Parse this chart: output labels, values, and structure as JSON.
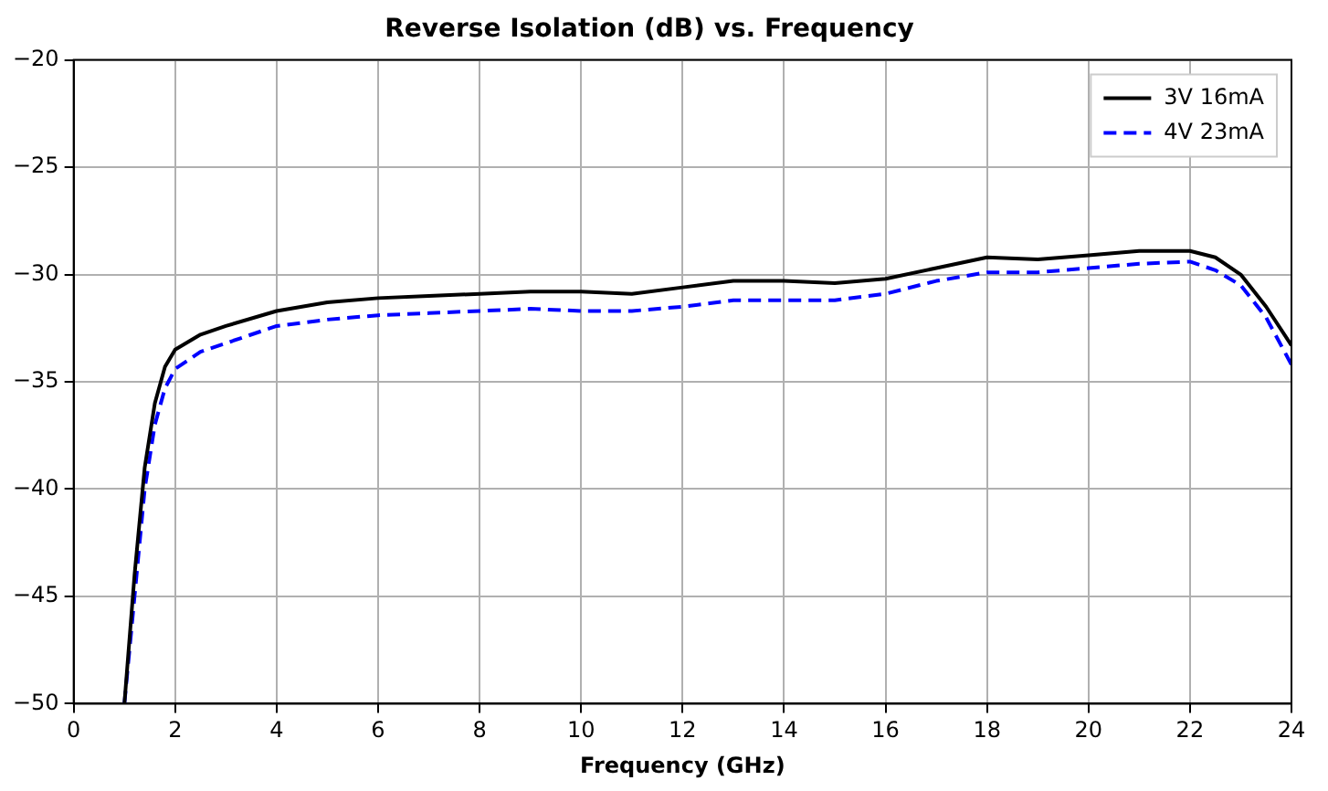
{
  "chart_data": {
    "type": "line",
    "title": "Reverse Isolation (dB) vs. Frequency",
    "xlabel": "Frequency (GHz)",
    "xlim": [
      0,
      24
    ],
    "xticks": [
      0,
      2,
      4,
      6,
      8,
      10,
      12,
      14,
      16,
      18,
      20,
      22,
      24
    ],
    "ylim": [
      -50,
      -20
    ],
    "yticks": [
      -50,
      -45,
      -40,
      -35,
      -30,
      -25,
      -20
    ],
    "grid": true,
    "legend": "top right",
    "marker": "none",
    "series": [
      {
        "name": "3V 16mA",
        "color": "#000000",
        "line_style": "solid",
        "x": [
          1.0,
          1.2,
          1.4,
          1.6,
          1.8,
          2,
          2.5,
          3,
          4,
          5,
          6,
          7,
          8,
          9,
          10,
          11,
          12,
          13,
          14,
          15,
          16,
          17,
          18,
          19,
          20,
          21,
          22,
          22.5,
          23,
          23.5,
          24
        ],
        "values": [
          -50,
          -44,
          -39,
          -36,
          -34.3,
          -33.5,
          -32.8,
          -32.4,
          -31.7,
          -31.3,
          -31.1,
          -31,
          -30.9,
          -30.8,
          -30.8,
          -30.9,
          -30.6,
          -30.3,
          -30.3,
          -30.4,
          -30.2,
          -29.7,
          -29.2,
          -29.3,
          -29.1,
          -28.9,
          -28.9,
          -29.2,
          -30,
          -31.5,
          -33.3
        ]
      },
      {
        "name": "4V 23mA",
        "color": "#0000ff",
        "line_style": "dashed",
        "x": [
          1.0,
          1.2,
          1.4,
          1.6,
          1.8,
          2,
          2.5,
          3,
          4,
          5,
          6,
          7,
          8,
          9,
          10,
          11,
          12,
          13,
          14,
          15,
          16,
          17,
          18,
          19,
          20,
          21,
          22,
          22.5,
          23,
          23.5,
          24
        ],
        "values": [
          -50,
          -45,
          -40,
          -37,
          -35.3,
          -34.4,
          -33.6,
          -33.2,
          -32.4,
          -32.1,
          -31.9,
          -31.8,
          -31.7,
          -31.6,
          -31.7,
          -31.7,
          -31.5,
          -31.2,
          -31.2,
          -31.2,
          -30.9,
          -30.3,
          -29.9,
          -29.9,
          -29.7,
          -29.5,
          -29.4,
          -29.8,
          -30.5,
          -32,
          -34.2
        ]
      }
    ]
  }
}
